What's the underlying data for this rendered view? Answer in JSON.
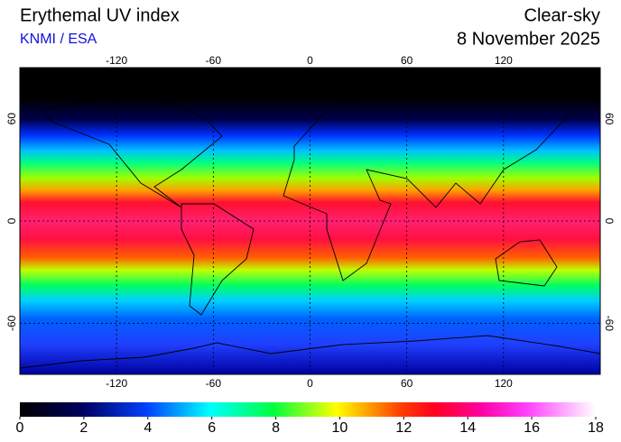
{
  "header": {
    "title": "Erythemal UV index",
    "source": "KNMI / ESA",
    "mode": "Clear-sky",
    "date": "8 November 2025"
  },
  "map": {
    "lon_range": [
      -180,
      180
    ],
    "lat_range": [
      -90,
      90
    ],
    "lon_ticks": [
      -120,
      -60,
      0,
      60,
      120
    ],
    "lat_ticks": [
      60,
      0,
      -60
    ]
  },
  "colorbar": {
    "range": [
      0,
      18
    ],
    "ticks": [
      0,
      2,
      4,
      6,
      8,
      10,
      12,
      14,
      16,
      18
    ]
  }
}
